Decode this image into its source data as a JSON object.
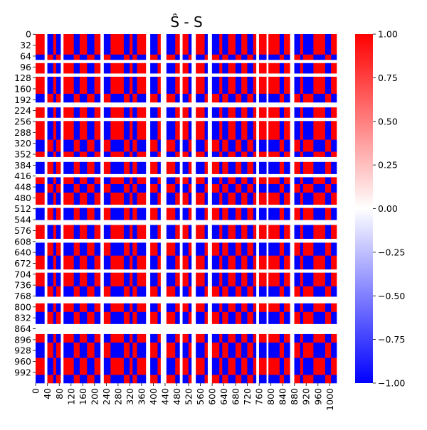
{
  "chart_data": {
    "type": "heatmap",
    "title": "Ŝ - S",
    "xlabel": "",
    "ylabel": "",
    "n": 1024,
    "value_range": [
      -1,
      1
    ],
    "colormap": "bwr",
    "colors": {
      "low": "#0000ff",
      "mid": "#ffffff",
      "high": "#ff0000"
    },
    "y_ticks": [
      0,
      32,
      64,
      96,
      128,
      160,
      192,
      224,
      256,
      288,
      320,
      352,
      384,
      416,
      448,
      480,
      512,
      544,
      576,
      608,
      640,
      672,
      704,
      736,
      768,
      800,
      832,
      864,
      896,
      928,
      960,
      992
    ],
    "x_ticks": [
      0,
      40,
      80,
      120,
      160,
      200,
      240,
      280,
      320,
      360,
      400,
      440,
      480,
      520,
      560,
      600,
      640,
      680,
      720,
      760,
      800,
      840,
      880,
      920,
      960,
      1000
    ],
    "colorbar_ticks": [
      1.0,
      0.75,
      0.5,
      0.25,
      0.0,
      -0.25,
      -0.5,
      -0.75,
      -1.0
    ],
    "colorbar_tick_labels": [
      "1.00",
      "0.75",
      "0.50",
      "0.25",
      "0.00",
      "−0.25",
      "−0.50",
      "−0.75",
      "−1.00"
    ],
    "column_groups": [
      {
        "start": 0,
        "end": 30,
        "sign": 1
      },
      {
        "start": 30,
        "end": 40,
        "sign": 0
      },
      {
        "start": 40,
        "end": 60,
        "sign": -1
      },
      {
        "start": 60,
        "end": 70,
        "sign": 1
      },
      {
        "start": 70,
        "end": 85,
        "sign": -1
      },
      {
        "start": 85,
        "end": 95,
        "sign": 0
      },
      {
        "start": 95,
        "end": 130,
        "sign": 1
      },
      {
        "start": 130,
        "end": 150,
        "sign": -1
      },
      {
        "start": 150,
        "end": 175,
        "sign": 1
      },
      {
        "start": 175,
        "end": 200,
        "sign": -1
      },
      {
        "start": 200,
        "end": 220,
        "sign": 1
      },
      {
        "start": 220,
        "end": 232,
        "sign": 0
      },
      {
        "start": 232,
        "end": 255,
        "sign": -1
      },
      {
        "start": 255,
        "end": 300,
        "sign": 1
      },
      {
        "start": 300,
        "end": 320,
        "sign": -1
      },
      {
        "start": 320,
        "end": 330,
        "sign": 1
      },
      {
        "start": 330,
        "end": 345,
        "sign": -1
      },
      {
        "start": 345,
        "end": 375,
        "sign": 1
      },
      {
        "start": 375,
        "end": 390,
        "sign": 0
      },
      {
        "start": 390,
        "end": 415,
        "sign": -1
      },
      {
        "start": 415,
        "end": 425,
        "sign": 1
      },
      {
        "start": 425,
        "end": 445,
        "sign": 0
      },
      {
        "start": 445,
        "end": 475,
        "sign": -1
      },
      {
        "start": 475,
        "end": 490,
        "sign": 1
      },
      {
        "start": 490,
        "end": 500,
        "sign": 0
      },
      {
        "start": 500,
        "end": 520,
        "sign": 1
      },
      {
        "start": 520,
        "end": 530,
        "sign": -1
      },
      {
        "start": 530,
        "end": 545,
        "sign": 0
      },
      {
        "start": 545,
        "end": 575,
        "sign": 1
      },
      {
        "start": 575,
        "end": 585,
        "sign": -1
      },
      {
        "start": 585,
        "end": 600,
        "sign": 0
      },
      {
        "start": 600,
        "end": 625,
        "sign": -1
      },
      {
        "start": 625,
        "end": 635,
        "sign": 1
      },
      {
        "start": 635,
        "end": 655,
        "sign": -1
      },
      {
        "start": 655,
        "end": 680,
        "sign": 1
      },
      {
        "start": 680,
        "end": 700,
        "sign": -1
      },
      {
        "start": 700,
        "end": 720,
        "sign": 1
      },
      {
        "start": 720,
        "end": 740,
        "sign": -1
      },
      {
        "start": 740,
        "end": 750,
        "sign": 1
      },
      {
        "start": 750,
        "end": 760,
        "sign": 0
      },
      {
        "start": 760,
        "end": 785,
        "sign": 1
      },
      {
        "start": 785,
        "end": 792,
        "sign": 0
      },
      {
        "start": 792,
        "end": 830,
        "sign": 1
      },
      {
        "start": 830,
        "end": 845,
        "sign": -1
      },
      {
        "start": 845,
        "end": 865,
        "sign": 1
      },
      {
        "start": 865,
        "end": 880,
        "sign": 0
      },
      {
        "start": 880,
        "end": 900,
        "sign": -1
      },
      {
        "start": 900,
        "end": 910,
        "sign": 1
      },
      {
        "start": 910,
        "end": 945,
        "sign": -1
      },
      {
        "start": 945,
        "end": 985,
        "sign": 1
      },
      {
        "start": 985,
        "end": 1005,
        "sign": -1
      },
      {
        "start": 1005,
        "end": 1024,
        "sign": 1
      }
    ],
    "row_groups": [
      {
        "start": 0,
        "end": 60,
        "sign": 1
      },
      {
        "start": 60,
        "end": 75,
        "sign": -1
      },
      {
        "start": 75,
        "end": 85,
        "sign": 0
      },
      {
        "start": 85,
        "end": 115,
        "sign": 1
      },
      {
        "start": 115,
        "end": 125,
        "sign": 0
      },
      {
        "start": 125,
        "end": 175,
        "sign": 1
      },
      {
        "start": 175,
        "end": 200,
        "sign": -1
      },
      {
        "start": 200,
        "end": 215,
        "sign": 0
      },
      {
        "start": 215,
        "end": 245,
        "sign": 1
      },
      {
        "start": 245,
        "end": 255,
        "sign": 0
      },
      {
        "start": 255,
        "end": 310,
        "sign": 1
      },
      {
        "start": 310,
        "end": 345,
        "sign": -1
      },
      {
        "start": 345,
        "end": 360,
        "sign": 1
      },
      {
        "start": 360,
        "end": 375,
        "sign": 0
      },
      {
        "start": 375,
        "end": 410,
        "sign": -1
      },
      {
        "start": 410,
        "end": 420,
        "sign": 0
      },
      {
        "start": 420,
        "end": 440,
        "sign": 1
      },
      {
        "start": 440,
        "end": 465,
        "sign": -1
      },
      {
        "start": 465,
        "end": 500,
        "sign": 1
      },
      {
        "start": 500,
        "end": 510,
        "sign": 0
      },
      {
        "start": 510,
        "end": 545,
        "sign": -1
      },
      {
        "start": 545,
        "end": 560,
        "sign": 0
      },
      {
        "start": 560,
        "end": 600,
        "sign": 1
      },
      {
        "start": 600,
        "end": 612,
        "sign": 0
      },
      {
        "start": 612,
        "end": 650,
        "sign": -1
      },
      {
        "start": 650,
        "end": 690,
        "sign": 1
      },
      {
        "start": 690,
        "end": 700,
        "sign": 0
      },
      {
        "start": 700,
        "end": 740,
        "sign": 1
      },
      {
        "start": 740,
        "end": 770,
        "sign": -1
      },
      {
        "start": 770,
        "end": 790,
        "sign": 0
      },
      {
        "start": 790,
        "end": 815,
        "sign": 1
      },
      {
        "start": 815,
        "end": 850,
        "sign": -1
      },
      {
        "start": 850,
        "end": 880,
        "sign": 0
      },
      {
        "start": 880,
        "end": 905,
        "sign": 1
      },
      {
        "start": 905,
        "end": 950,
        "sign": -1
      },
      {
        "start": 950,
        "end": 1000,
        "sign": 1
      },
      {
        "start": 1000,
        "end": 1024,
        "sign": -1
      }
    ]
  }
}
